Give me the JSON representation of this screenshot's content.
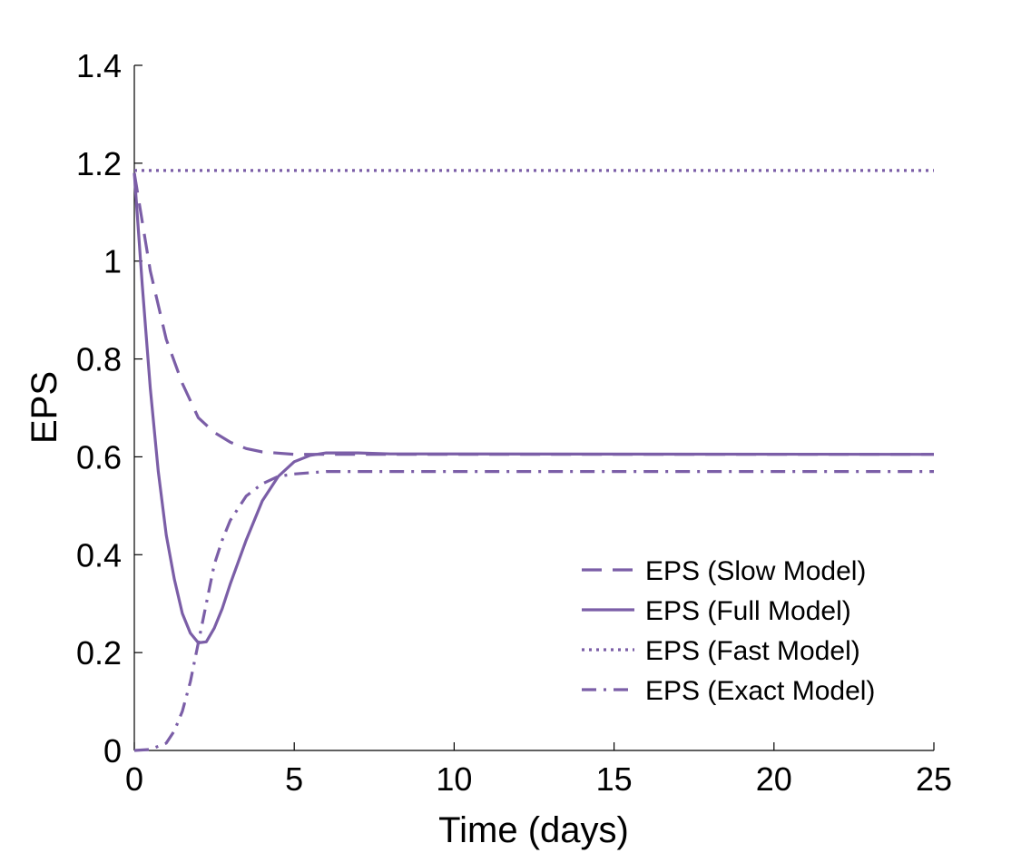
{
  "chart_data": {
    "type": "line",
    "title": "",
    "xlabel": "Time (days)",
    "ylabel": "EPS",
    "xlim": [
      0,
      25
    ],
    "ylim": [
      0,
      1.4
    ],
    "x_ticks": [
      "0",
      "5",
      "10",
      "15",
      "20",
      "25"
    ],
    "y_ticks": [
      "0",
      "0.2",
      "0.4",
      "0.6",
      "0.8",
      "1",
      "1.2",
      "1.4"
    ],
    "grid": false,
    "legend_position": "bottom-right",
    "series": [
      {
        "name": "EPS (Slow Model)",
        "style": "dashed",
        "color": "#7b5ea7",
        "points": [
          [
            0,
            1.18
          ],
          [
            0.25,
            1.08
          ],
          [
            0.5,
            0.98
          ],
          [
            0.75,
            0.91
          ],
          [
            1,
            0.84
          ],
          [
            1.5,
            0.75
          ],
          [
            2,
            0.68
          ],
          [
            2.5,
            0.65
          ],
          [
            3,
            0.63
          ],
          [
            3.5,
            0.617
          ],
          [
            4,
            0.61
          ],
          [
            5,
            0.605
          ],
          [
            6,
            0.605
          ],
          [
            8,
            0.605
          ],
          [
            25,
            0.605
          ]
        ]
      },
      {
        "name": "EPS (Full Model)",
        "style": "solid",
        "color": "#7b5ea7",
        "points": [
          [
            0,
            1.18
          ],
          [
            0.25,
            0.95
          ],
          [
            0.5,
            0.74
          ],
          [
            0.75,
            0.57
          ],
          [
            1,
            0.44
          ],
          [
            1.25,
            0.35
          ],
          [
            1.5,
            0.28
          ],
          [
            1.75,
            0.24
          ],
          [
            2,
            0.22
          ],
          [
            2.25,
            0.222
          ],
          [
            2.5,
            0.25
          ],
          [
            2.75,
            0.29
          ],
          [
            3,
            0.34
          ],
          [
            3.5,
            0.43
          ],
          [
            4,
            0.51
          ],
          [
            4.5,
            0.56
          ],
          [
            5,
            0.59
          ],
          [
            5.5,
            0.603
          ],
          [
            6,
            0.608
          ],
          [
            7,
            0.608
          ],
          [
            8,
            0.606
          ],
          [
            25,
            0.605
          ]
        ]
      },
      {
        "name": "EPS (Fast Model)",
        "style": "dotted",
        "color": "#7b5ea7",
        "points": [
          [
            0,
            1.185
          ],
          [
            25,
            1.185
          ]
        ]
      },
      {
        "name": "EPS (Exact Model)",
        "style": "dashdot",
        "color": "#7b5ea7",
        "points": [
          [
            0,
            0
          ],
          [
            0.5,
            0.002
          ],
          [
            1,
            0.015
          ],
          [
            1.25,
            0.04
          ],
          [
            1.5,
            0.08
          ],
          [
            1.75,
            0.14
          ],
          [
            2,
            0.22
          ],
          [
            2.25,
            0.3
          ],
          [
            2.5,
            0.38
          ],
          [
            2.75,
            0.43
          ],
          [
            3,
            0.47
          ],
          [
            3.5,
            0.52
          ],
          [
            4,
            0.545
          ],
          [
            4.5,
            0.56
          ],
          [
            5,
            0.565
          ],
          [
            6,
            0.57
          ],
          [
            8,
            0.57
          ],
          [
            25,
            0.57
          ]
        ]
      }
    ]
  }
}
